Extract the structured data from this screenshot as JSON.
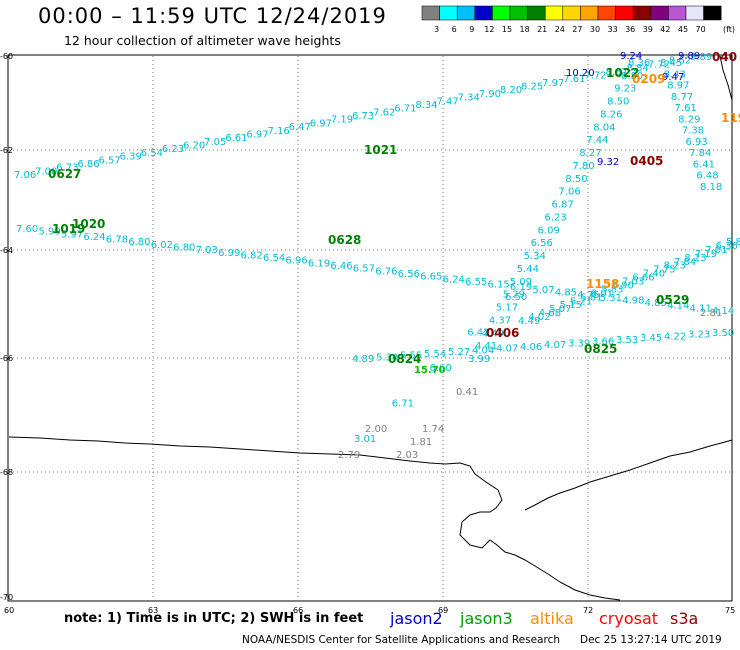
{
  "header": {
    "title": "00:00 – 11:59 UTC 12/24/2019",
    "subtitle": "12 hour collection of altimeter wave heights"
  },
  "color_scale": {
    "unit_label": "(ft)",
    "bins": [
      {
        "label": "3",
        "color": "#808080"
      },
      {
        "label": "6",
        "color": "#00ffff"
      },
      {
        "label": "9",
        "color": "#00bfff"
      },
      {
        "label": "12",
        "color": "#0000cd"
      },
      {
        "label": "15",
        "color": "#00ff00"
      },
      {
        "label": "18",
        "color": "#00c000"
      },
      {
        "label": "21",
        "color": "#008000"
      },
      {
        "label": "24",
        "color": "#ffff00"
      },
      {
        "label": "27",
        "color": "#ffd700"
      },
      {
        "label": "30",
        "color": "#ffa500"
      },
      {
        "label": "33",
        "color": "#ff4500"
      },
      {
        "label": "36",
        "color": "#ff0000"
      },
      {
        "label": "39",
        "color": "#8b0000"
      },
      {
        "label": "42",
        "color": "#800080"
      },
      {
        "label": "45",
        "color": "#ba55d3"
      },
      {
        "label": "70",
        "color": "#e6e6fa"
      },
      {
        "label": "",
        "color": "#000000"
      }
    ]
  },
  "axes": {
    "lat_labels": [
      "-60",
      "-62",
      "-64",
      "-66",
      "-68",
      "-70"
    ],
    "lon_labels": [
      "60",
      "63",
      "66",
      "69",
      "72",
      "75"
    ]
  },
  "tracks": {
    "cryo_a": {
      "values": [
        "7.06",
        "7.00",
        "6.73",
        "6.86",
        "6.57",
        "6.39",
        "6.54",
        "6.23",
        "6.20",
        "7.05",
        "6.61",
        "6.97",
        "7.16",
        "6.47",
        "6.97",
        "7.19",
        "6.73",
        "7.62",
        "6.71",
        "8.34",
        "7.47",
        "7.34",
        "7.90",
        "8.20",
        "8.25",
        "7.97",
        "7.61",
        "7.72",
        "8.67",
        "8.84",
        "7.72",
        "8.62",
        "9.89"
      ],
      "color": "#00bcd4"
    },
    "cryo_b": {
      "values": [
        "7.60",
        "5.99",
        "5.97",
        "6.24",
        "6.78",
        "6.80",
        "6.02",
        "6.80",
        "7.03",
        "6.99",
        "6.82",
        "6.54",
        "6.96",
        "6.19",
        "6.46",
        "6.57",
        "6.76",
        "6.56",
        "6.65",
        "6.24",
        "6.55",
        "6.15",
        "6.19",
        "5.07",
        "4.85",
        "4.75",
        "5.31",
        "4.98",
        "4.85",
        "4.14",
        "4.11",
        "4.14"
      ],
      "color": "#00bcd4"
    },
    "j3_up": {
      "values": [
        "3.99",
        "4.41",
        "4.49",
        "4.37",
        "5.17",
        "5.29",
        "5.09",
        "5.44",
        "5.34",
        "6.56",
        "6.09",
        "6.23",
        "6.87",
        "7.06",
        "8.50",
        "7.80",
        "8.27",
        "7.44",
        "8.04",
        "8.26",
        "8.50",
        "9.23",
        "8.80",
        "8.36"
      ],
      "color": "#00bcd4"
    },
    "j3_b": {
      "values": [
        "4.49",
        "4.02",
        "4.68",
        "5.07",
        "5.15",
        "5.21",
        "5.81",
        "6.01",
        "5.83",
        "6.90",
        "7.03",
        "6.66",
        "7.40",
        "7.75",
        "8.23",
        "7.84",
        "8.23",
        "7.19",
        "7.01",
        "6.36",
        "5.8"
      ],
      "color": "#00bcd4"
    },
    "cryo_c": {
      "values": [
        "4.89",
        "5.34",
        "5.55",
        "5.54",
        "5.27",
        "4.04",
        "4.07",
        "4.06",
        "4.07",
        "3.39",
        "3.66",
        "3.53",
        "3.45",
        "4.22",
        "3.23",
        "3.50"
      ],
      "color": "#00bcd4"
    },
    "right_col": {
      "values": [
        "8.45",
        "8.43",
        "8.97",
        "8.77",
        "7.61",
        "8.29",
        "7.38",
        "6.93",
        "7.84",
        "6.41",
        "6.48",
        "8.18"
      ],
      "color": "#00bcd4"
    },
    "lower_cyan": {
      "values": [
        "6.50",
        "6.42",
        "6.60",
        "6.71",
        "3.01"
      ],
      "color": "#00bcd4"
    },
    "blue_vals": {
      "values": [
        "9.24",
        "10.20",
        "9.47",
        "9.32",
        "9.89"
      ],
      "color": "#0000cd"
    },
    "gray_vals": {
      "values": [
        "0.41",
        "2.00",
        "1.74",
        "1.81",
        "2.79",
        "2.03",
        "2.81"
      ],
      "color": "#808080"
    },
    "time_labels": {
      "green": [
        "0627",
        "1019",
        "1020",
        "1021",
        "0628",
        "0529",
        "0824",
        "0825",
        "1022"
      ],
      "orange": [
        "1158",
        "0209",
        "119"
      ],
      "darkred": [
        "0406",
        "0405",
        "040"
      ],
      "green_values": [
        "15.70"
      ]
    }
  },
  "note": "note: 1) Time is in UTC; 2) SWH is in feet",
  "satellites": [
    {
      "name": "jason2",
      "color": "#0000cd"
    },
    {
      "name": "jason3",
      "color": "#00a000"
    },
    {
      "name": "altika",
      "color": "#ff8c00"
    },
    {
      "name": "cryosat",
      "color": "#ff0000"
    },
    {
      "name": "s3a",
      "color": "#8b0000"
    }
  ],
  "footer": {
    "credit": "NOAA/NESDIS Center for Satellite Applications and Research",
    "date": "Dec 25 13:27:14 UTC 2019"
  }
}
